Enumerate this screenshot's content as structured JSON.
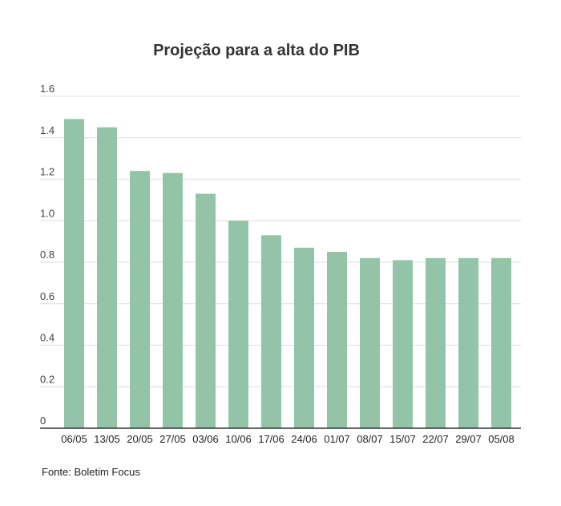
{
  "chart_data": {
    "type": "bar",
    "title": "Projeção para a alta do PIB",
    "xlabel": "",
    "ylabel": "",
    "categories": [
      "06/05",
      "13/05",
      "20/05",
      "27/05",
      "03/06",
      "10/06",
      "17/06",
      "24/06",
      "01/07",
      "08/07",
      "15/07",
      "22/07",
      "29/07",
      "05/08"
    ],
    "values": [
      1.49,
      1.45,
      1.24,
      1.23,
      1.13,
      1.0,
      0.93,
      0.87,
      0.85,
      0.82,
      0.81,
      0.82,
      0.82,
      0.82
    ],
    "ylim": [
      0,
      1.6
    ],
    "yticks": [
      "0",
      "0.2",
      "0.4",
      "0.6",
      "0.8",
      "1.0",
      "1.2",
      "1.4",
      "1.6"
    ],
    "grid": true,
    "legend": "none",
    "colors": {
      "bar": "#93c4a8",
      "grid": "#dddddd",
      "axis": "#333333"
    }
  },
  "source": "Fonte: Boletim Focus"
}
